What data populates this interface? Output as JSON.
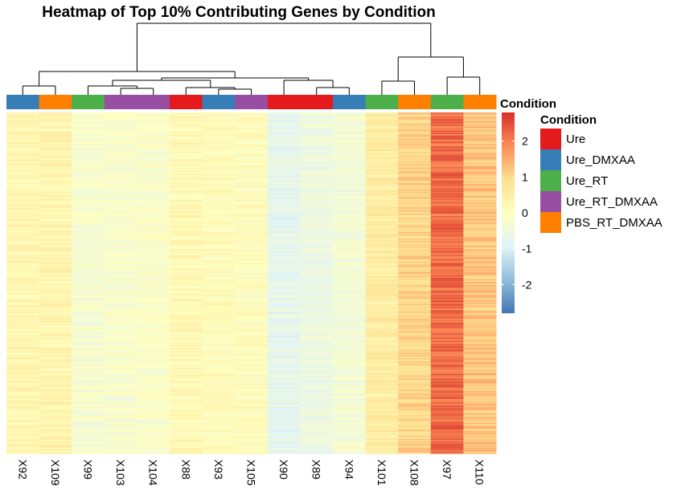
{
  "chart_data": {
    "type": "heatmap",
    "title": "Heatmap of Top 10% Contributing Genes by Condition",
    "columns": [
      "X92",
      "X109",
      "X99",
      "X103",
      "X104",
      "X88",
      "X93",
      "X105",
      "X90",
      "X89",
      "X94",
      "X101",
      "X108",
      "X97",
      "X110"
    ],
    "conditions": [
      "Ure_DMXAA",
      "PBS_RT_DMXAA",
      "Ure_RT",
      "Ure_RT_DMXAA",
      "Ure_RT_DMXAA",
      "Ure",
      "Ure_DMXAA",
      "Ure_RT_DMXAA",
      "Ure",
      "Ure",
      "Ure_DMXAA",
      "Ure_RT",
      "PBS_RT_DMXAA",
      "Ure_RT",
      "PBS_RT_DMXAA"
    ],
    "column_mean_values": [
      0.25,
      0.3,
      -0.25,
      -0.2,
      -0.15,
      0.2,
      0.1,
      0.05,
      -0.75,
      -0.55,
      -0.35,
      0.55,
      1.05,
      2.2,
      1.25
    ],
    "annotation_title": "Condition",
    "condition_legend": [
      {
        "name": "Ure",
        "color": "#E41A1C"
      },
      {
        "name": "Ure_DMXAA",
        "color": "#377EB8"
      },
      {
        "name": "Ure_RT",
        "color": "#4DAF4A"
      },
      {
        "name": "Ure_RT_DMXAA",
        "color": "#984EA3"
      },
      {
        "name": "PBS_RT_DMXAA",
        "color": "#FF7F00"
      }
    ],
    "color_scale": {
      "ticks": [
        "2",
        "1",
        "0",
        "-1",
        "-2"
      ],
      "tick_values": [
        2,
        1,
        0,
        -1,
        -2
      ],
      "range": [
        -2.8,
        2.8
      ],
      "colors": [
        "#4575B4",
        "#91BFDB",
        "#E0F3F8",
        "#FFFFBF",
        "#FEE090",
        "#FC8D59",
        "#D73027"
      ]
    },
    "row_dendrogram": false,
    "column_dendrogram": true
  }
}
